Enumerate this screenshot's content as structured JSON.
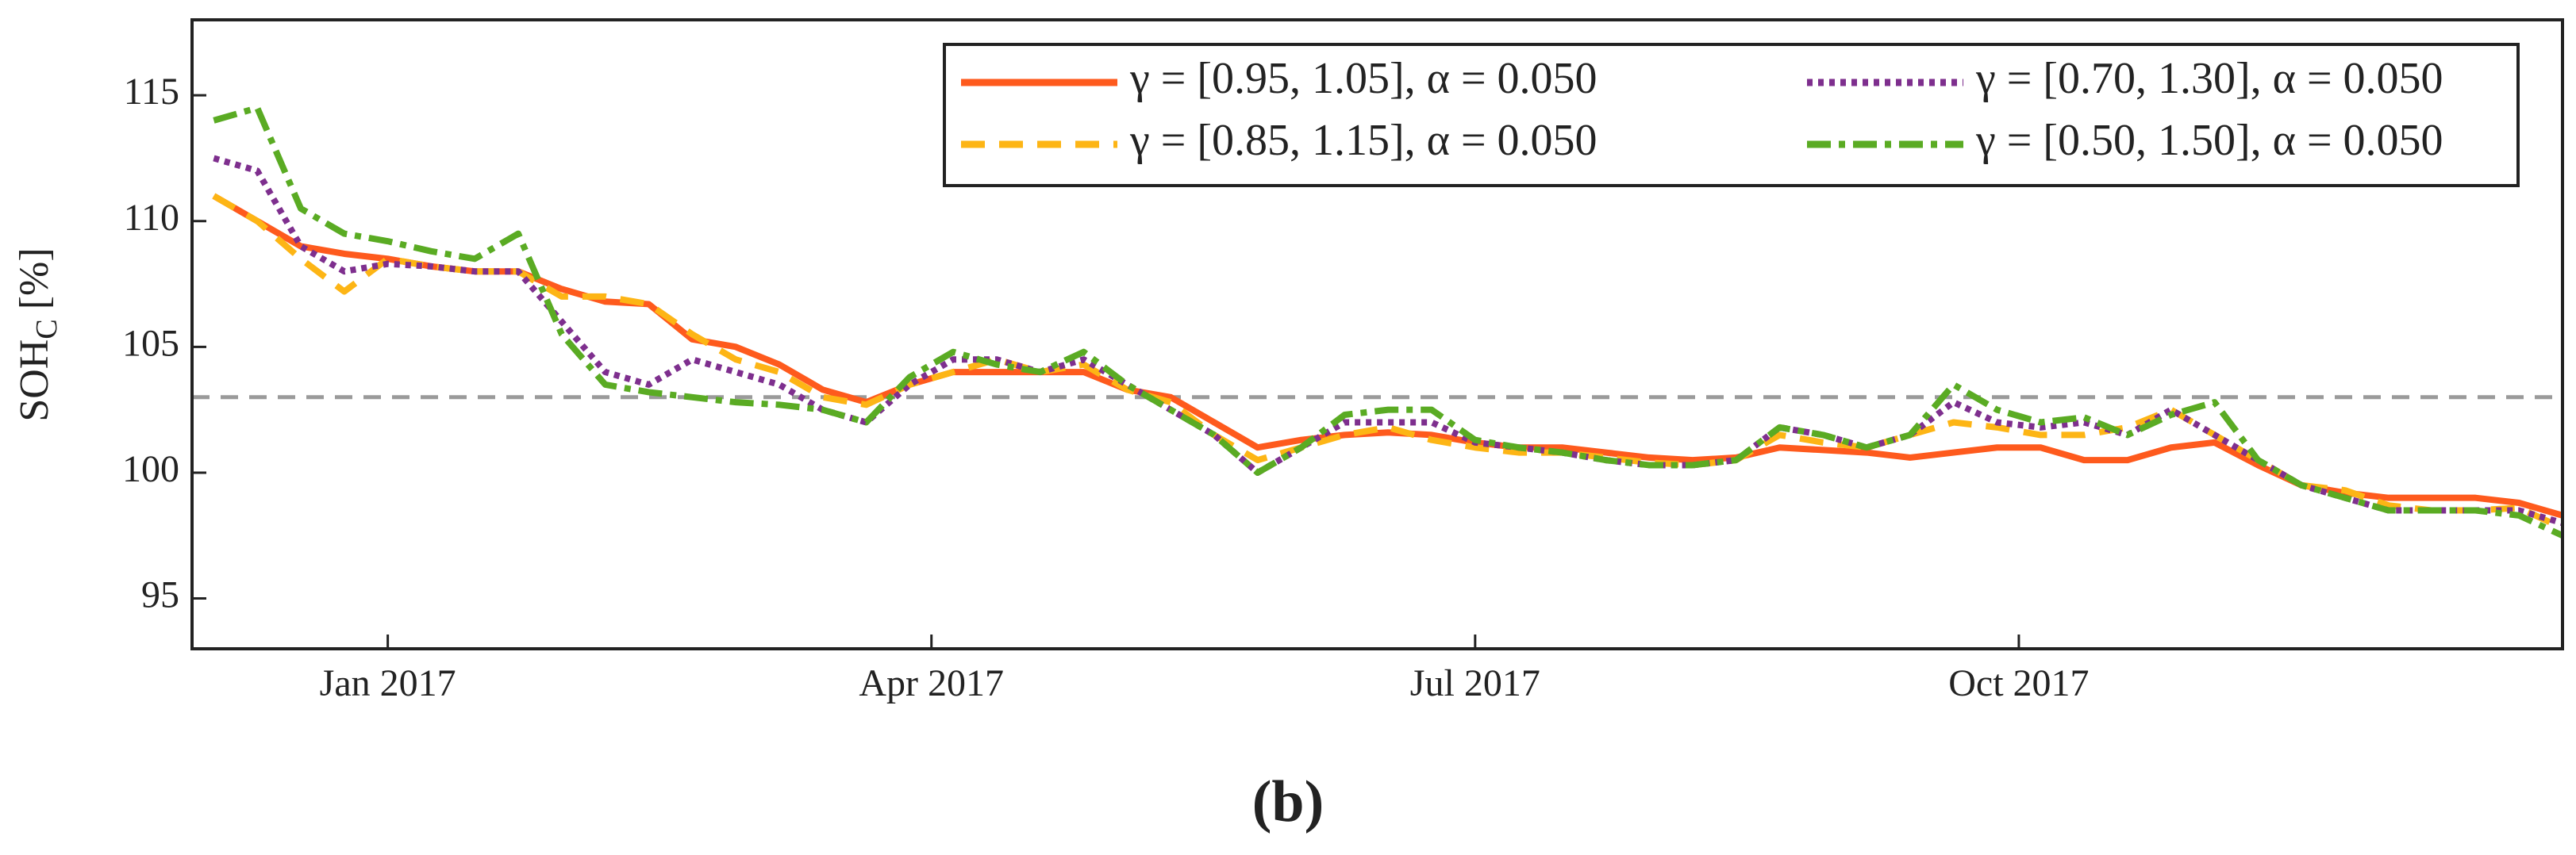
{
  "chart_data": {
    "type": "line",
    "ylabel": {
      "main": "SOH",
      "sub": "C",
      "unit": "[%]"
    },
    "caption": "(b)",
    "xlim": [
      2016.91,
      2018.0
    ],
    "xticks": [
      {
        "value": 2017.0,
        "label": "Jan 2017"
      },
      {
        "value": 2017.25,
        "label": "Apr 2017"
      },
      {
        "value": 2017.5,
        "label": "Jul 2017"
      },
      {
        "value": 2017.75,
        "label": "Oct 2017"
      }
    ],
    "ylim": [
      93,
      118
    ],
    "yticks": [
      95,
      100,
      105,
      110,
      115
    ],
    "hline": 103,
    "hline_color": "#9a9a9a",
    "legend": "upper right",
    "x": [
      2016.92,
      2016.94,
      2016.96,
      2016.98,
      2017.0,
      2017.02,
      2017.04,
      2017.06,
      2017.08,
      2017.1,
      2017.12,
      2017.14,
      2017.16,
      2017.18,
      2017.2,
      2017.22,
      2017.24,
      2017.26,
      2017.28,
      2017.3,
      2017.32,
      2017.34,
      2017.36,
      2017.38,
      2017.4,
      2017.42,
      2017.44,
      2017.46,
      2017.48,
      2017.5,
      2017.52,
      2017.54,
      2017.56,
      2017.58,
      2017.6,
      2017.62,
      2017.64,
      2017.66,
      2017.68,
      2017.7,
      2017.72,
      2017.74,
      2017.76,
      2017.78,
      2017.8,
      2017.82,
      2017.84,
      2017.86,
      2017.88,
      2017.9,
      2017.92,
      2017.94,
      2017.96,
      2017.98,
      2018.0
    ],
    "series": [
      {
        "name": "γ = [0.95, 1.05], α = 0.050",
        "color": "#fe5a1d",
        "dash": "solid",
        "values": [
          111,
          110,
          109,
          108.7,
          108.5,
          108.2,
          108,
          108,
          107.3,
          106.8,
          106.7,
          105.3,
          105,
          104.3,
          103.3,
          102.8,
          103.5,
          104,
          104,
          104,
          104,
          103.3,
          103,
          102,
          101,
          101.3,
          101.5,
          101.6,
          101.5,
          101.2,
          101,
          101,
          100.8,
          100.6,
          100.5,
          100.6,
          101,
          100.9,
          100.8,
          100.6,
          100.8,
          101,
          101,
          100.5,
          100.5,
          101,
          101.2,
          100.3,
          99.5,
          99.2,
          99,
          99,
          99,
          98.8,
          98.3
        ]
      },
      {
        "name": "γ = [0.85, 1.15], α = 0.050",
        "color": "#fdb515",
        "dash": "dashed",
        "values": [
          111,
          110,
          108.5,
          107.2,
          108.5,
          108.2,
          108,
          108,
          107,
          107,
          106.7,
          105.5,
          104.5,
          104,
          103,
          102.7,
          103.5,
          104,
          104.5,
          104,
          104.3,
          103.3,
          102.8,
          101.5,
          100.5,
          101,
          101.5,
          101.8,
          101.3,
          101,
          100.8,
          100.8,
          100.6,
          100.4,
          100.3,
          100.5,
          101.5,
          101.2,
          101,
          101.5,
          102,
          101.8,
          101.5,
          101.5,
          101.8,
          102.5,
          101.5,
          100.5,
          99.5,
          99.3,
          98.7,
          98.5,
          98.5,
          98.6,
          97.8
        ]
      },
      {
        "name": "γ = [0.70, 1.30], α = 0.050",
        "color": "#7e2f8e",
        "dash": "dotted",
        "values": [
          112.5,
          112,
          109,
          108,
          108.3,
          108.2,
          108,
          108,
          106,
          104,
          103.5,
          104.5,
          104,
          103.5,
          102.5,
          102,
          103.5,
          104.5,
          104.5,
          104,
          104.5,
          103.5,
          102.5,
          101.5,
          100,
          101,
          102,
          102,
          102,
          101.2,
          101,
          100.8,
          100.5,
          100.3,
          100.3,
          100.5,
          101.8,
          101.5,
          101,
          101.5,
          102.8,
          102,
          101.8,
          102,
          101.5,
          102.5,
          101.5,
          100.5,
          99.5,
          99,
          98.5,
          98.5,
          98.5,
          98.5,
          98
        ]
      },
      {
        "name": "γ = [0.50, 1.50], α = 0.050",
        "color": "#5aab23",
        "dash": "dashdot",
        "values": [
          114,
          114.5,
          110.5,
          109.5,
          109.2,
          108.8,
          108.5,
          109.5,
          105.5,
          103.5,
          103.2,
          103,
          102.8,
          102.7,
          102.5,
          102,
          103.8,
          104.8,
          104.3,
          104,
          104.8,
          103.5,
          102.5,
          101.5,
          100,
          101,
          102.3,
          102.5,
          102.5,
          101.3,
          101,
          100.8,
          100.5,
          100.3,
          100.3,
          100.5,
          101.8,
          101.5,
          101,
          101.5,
          103.5,
          102.5,
          102,
          102.2,
          101.5,
          102.3,
          102.8,
          100.5,
          99.5,
          99,
          98.5,
          98.5,
          98.5,
          98.3,
          97.5
        ]
      }
    ]
  }
}
